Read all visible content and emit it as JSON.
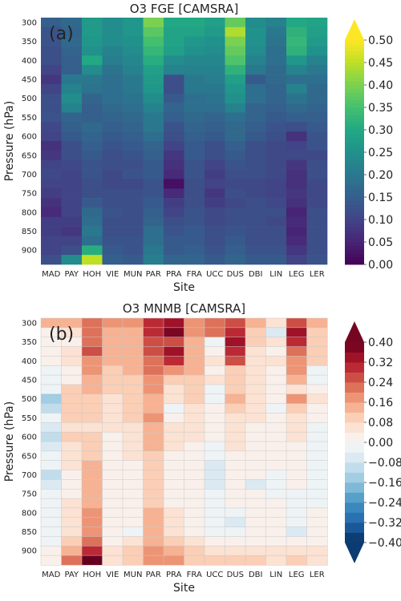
{
  "chart_data": [
    {
      "type": "heatmap",
      "panel_label": "(a)",
      "title": "O3 FGE [CAMSRA]",
      "xlabel": "Site",
      "ylabel": "Pressure (hPa)",
      "x": [
        "MAD",
        "PAY",
        "HOH",
        "VIE",
        "MUN",
        "PAR",
        "PRA",
        "FRA",
        "UCC",
        "DUS",
        "DBI",
        "LIN",
        "LEG",
        "LER"
      ],
      "y": [
        300,
        325,
        350,
        375,
        400,
        425,
        450,
        475,
        500,
        525,
        550,
        575,
        600,
        625,
        650,
        675,
        700,
        725,
        750,
        775,
        800,
        825,
        850,
        875,
        900,
        925
      ],
      "ytick_labels": [
        "300",
        "350",
        "400",
        "450",
        "500",
        "550",
        "600",
        "650",
        "700",
        "750",
        "800",
        "850",
        "900"
      ],
      "colorbar": {
        "colormap": "viridis",
        "vmin": 0.0,
        "vmax": 0.5,
        "ticks": [
          "0.00",
          "0.05",
          "0.10",
          "0.15",
          "0.20",
          "0.25",
          "0.30",
          "0.35",
          "0.40",
          "0.45",
          "0.50"
        ],
        "extend": "max"
      },
      "values": [
        [
          0.15,
          0.17,
          0.27,
          0.24,
          0.26,
          0.4,
          0.3,
          0.3,
          0.28,
          0.38,
          0.24,
          0.22,
          0.3,
          0.29
        ],
        [
          0.13,
          0.16,
          0.27,
          0.24,
          0.26,
          0.37,
          0.29,
          0.29,
          0.27,
          0.44,
          0.25,
          0.2,
          0.32,
          0.28
        ],
        [
          0.13,
          0.17,
          0.26,
          0.24,
          0.25,
          0.35,
          0.29,
          0.26,
          0.25,
          0.4,
          0.25,
          0.19,
          0.33,
          0.27
        ],
        [
          0.12,
          0.16,
          0.25,
          0.22,
          0.24,
          0.33,
          0.28,
          0.25,
          0.24,
          0.38,
          0.24,
          0.18,
          0.32,
          0.25
        ],
        [
          0.12,
          0.15,
          0.3,
          0.21,
          0.23,
          0.31,
          0.24,
          0.23,
          0.23,
          0.36,
          0.22,
          0.18,
          0.26,
          0.22
        ],
        [
          0.1,
          0.15,
          0.24,
          0.19,
          0.22,
          0.28,
          0.22,
          0.22,
          0.22,
          0.32,
          0.2,
          0.17,
          0.22,
          0.2
        ],
        [
          0.08,
          0.2,
          0.2,
          0.18,
          0.2,
          0.27,
          0.12,
          0.2,
          0.21,
          0.28,
          0.14,
          0.17,
          0.18,
          0.18
        ],
        [
          0.1,
          0.22,
          0.19,
          0.18,
          0.2,
          0.26,
          0.12,
          0.2,
          0.2,
          0.26,
          0.18,
          0.16,
          0.22,
          0.17
        ],
        [
          0.12,
          0.24,
          0.16,
          0.18,
          0.19,
          0.24,
          0.14,
          0.18,
          0.19,
          0.25,
          0.18,
          0.16,
          0.19,
          0.17
        ],
        [
          0.12,
          0.22,
          0.15,
          0.17,
          0.18,
          0.22,
          0.16,
          0.18,
          0.18,
          0.22,
          0.16,
          0.15,
          0.17,
          0.16
        ],
        [
          0.13,
          0.16,
          0.15,
          0.16,
          0.17,
          0.2,
          0.15,
          0.17,
          0.16,
          0.18,
          0.16,
          0.14,
          0.15,
          0.15
        ],
        [
          0.11,
          0.15,
          0.17,
          0.15,
          0.16,
          0.2,
          0.13,
          0.16,
          0.15,
          0.17,
          0.15,
          0.13,
          0.12,
          0.14
        ],
        [
          0.1,
          0.14,
          0.16,
          0.14,
          0.15,
          0.18,
          0.12,
          0.15,
          0.14,
          0.17,
          0.14,
          0.12,
          0.07,
          0.13
        ],
        [
          0.07,
          0.12,
          0.15,
          0.13,
          0.14,
          0.16,
          0.1,
          0.14,
          0.12,
          0.15,
          0.12,
          0.11,
          0.1,
          0.13
        ],
        [
          0.08,
          0.12,
          0.14,
          0.12,
          0.13,
          0.15,
          0.08,
          0.14,
          0.12,
          0.14,
          0.12,
          0.11,
          0.11,
          0.11
        ],
        [
          0.1,
          0.11,
          0.13,
          0.12,
          0.12,
          0.14,
          0.07,
          0.13,
          0.1,
          0.13,
          0.12,
          0.11,
          0.08,
          0.12
        ],
        [
          0.11,
          0.1,
          0.13,
          0.11,
          0.13,
          0.14,
          0.06,
          0.13,
          0.09,
          0.12,
          0.12,
          0.11,
          0.07,
          0.12
        ],
        [
          0.1,
          0.1,
          0.12,
          0.11,
          0.11,
          0.13,
          0.02,
          0.12,
          0.1,
          0.11,
          0.11,
          0.1,
          0.07,
          0.11
        ],
        [
          0.09,
          0.1,
          0.12,
          0.12,
          0.12,
          0.13,
          0.06,
          0.12,
          0.08,
          0.12,
          0.11,
          0.1,
          0.08,
          0.11
        ],
        [
          0.07,
          0.1,
          0.14,
          0.12,
          0.12,
          0.14,
          0.09,
          0.12,
          0.09,
          0.11,
          0.12,
          0.11,
          0.07,
          0.11
        ],
        [
          0.06,
          0.1,
          0.17,
          0.13,
          0.12,
          0.15,
          0.1,
          0.13,
          0.11,
          0.12,
          0.12,
          0.12,
          0.05,
          0.12
        ],
        [
          0.09,
          0.09,
          0.18,
          0.12,
          0.12,
          0.16,
          0.12,
          0.13,
          0.11,
          0.12,
          0.12,
          0.11,
          0.06,
          0.12
        ],
        [
          0.09,
          0.08,
          0.2,
          0.12,
          0.12,
          0.18,
          0.13,
          0.14,
          0.12,
          0.13,
          0.12,
          0.12,
          0.05,
          0.12
        ],
        [
          0.1,
          0.1,
          0.18,
          0.13,
          0.13,
          0.18,
          0.14,
          0.14,
          0.12,
          0.14,
          0.12,
          0.12,
          0.06,
          0.12
        ],
        [
          0.1,
          0.12,
          0.31,
          0.14,
          0.13,
          0.2,
          0.14,
          0.15,
          0.13,
          0.15,
          0.13,
          0.13,
          0.08,
          0.12
        ],
        [
          0.12,
          0.24,
          0.45,
          0.15,
          0.14,
          0.21,
          0.16,
          0.16,
          0.14,
          0.16,
          0.14,
          0.14,
          0.1,
          0.13
        ]
      ]
    },
    {
      "type": "heatmap",
      "panel_label": "(b)",
      "title": "O3 MNMB [CAMSRA]",
      "xlabel": "Site",
      "ylabel": "Pressure (hPa)",
      "x": [
        "MAD",
        "PAY",
        "HOH",
        "VIE",
        "MUN",
        "PAR",
        "PRA",
        "FRA",
        "UCC",
        "DUS",
        "DBI",
        "LIN",
        "LEG",
        "LER"
      ],
      "y": [
        300,
        325,
        350,
        375,
        400,
        425,
        450,
        475,
        500,
        525,
        550,
        575,
        600,
        625,
        650,
        675,
        700,
        725,
        750,
        775,
        800,
        825,
        850,
        875,
        900,
        925
      ],
      "ytick_labels": [
        "300",
        "350",
        "400",
        "450",
        "500",
        "550",
        "600",
        "650",
        "700",
        "750",
        "800",
        "850",
        "900"
      ],
      "colorbar": {
        "colormap": "RdBu_r",
        "vmin": -0.4,
        "vmax": 0.4,
        "ticks": [
          "−0.40",
          "−0.32",
          "−0.24",
          "−0.16",
          "−0.08",
          "0.00",
          "0.08",
          "0.16",
          "0.24",
          "0.32",
          "0.40"
        ],
        "extend": "both"
      },
      "values": [
        [
          0.12,
          0.13,
          0.22,
          0.16,
          0.16,
          0.3,
          0.34,
          0.19,
          0.22,
          0.26,
          0.14,
          0.05,
          0.26,
          0.12
        ],
        [
          0.03,
          0.05,
          0.2,
          0.14,
          0.15,
          0.28,
          0.36,
          0.16,
          0.2,
          0.28,
          0.1,
          -0.06,
          0.33,
          0.1
        ],
        [
          0.02,
          0.04,
          0.24,
          0.14,
          0.14,
          0.26,
          0.26,
          0.15,
          -0.02,
          0.34,
          0.08,
          0.06,
          0.28,
          0.1
        ],
        [
          0.02,
          0.05,
          0.25,
          0.12,
          0.14,
          0.25,
          0.32,
          0.13,
          0.04,
          0.3,
          0.07,
          0.03,
          0.24,
          0.09
        ],
        [
          0.02,
          0.06,
          0.18,
          0.12,
          0.14,
          0.24,
          0.29,
          0.12,
          0.06,
          0.27,
          0.07,
          0.05,
          0.18,
          0.08
        ],
        [
          -0.03,
          0.03,
          0.17,
          0.1,
          0.12,
          0.22,
          0.16,
          0.12,
          0.04,
          0.1,
          0.06,
          0.04,
          0.18,
          -0.04
        ],
        [
          -0.02,
          0.02,
          0.15,
          0.09,
          0.11,
          0.18,
          0.1,
          0.1,
          0.05,
          0.1,
          0.07,
          0.04,
          0.13,
          -0.02
        ],
        [
          -0.04,
          0.08,
          0.15,
          0.08,
          0.1,
          0.18,
          0.06,
          0.09,
          -0.02,
          0.08,
          0.06,
          0.04,
          0.05,
          0.04
        ],
        [
          -0.13,
          0.1,
          0.1,
          0.07,
          0.08,
          0.14,
          0.05,
          0.08,
          -0.04,
          0.14,
          0.06,
          0.03,
          0.16,
          0.06
        ],
        [
          -0.09,
          0.11,
          0.1,
          0.06,
          0.08,
          0.14,
          -0.01,
          0.06,
          0.02,
          0.08,
          0.05,
          -0.03,
          0.08,
          0.04
        ],
        [
          -0.02,
          0.08,
          0.09,
          0.05,
          0.08,
          0.16,
          0.04,
          0.06,
          0.04,
          0.07,
          0.05,
          0.03,
          0.06,
          0.04
        ],
        [
          -0.06,
          0.07,
          0.07,
          0.05,
          0.06,
          0.12,
          0.05,
          0.05,
          0.03,
          0.06,
          0.04,
          0.02,
          0.06,
          -0.02
        ],
        [
          -0.09,
          0.08,
          0.09,
          0.04,
          0.06,
          0.14,
          0.06,
          0.05,
          0.03,
          0.05,
          0.04,
          0.02,
          0.05,
          -0.04
        ],
        [
          -0.07,
          0.06,
          0.1,
          0.04,
          0.05,
          0.12,
          0.05,
          0.04,
          -0.02,
          0.05,
          0.03,
          0.01,
          0.04,
          -0.03
        ],
        [
          -0.03,
          0.05,
          0.11,
          0.04,
          0.05,
          0.11,
          0.04,
          0.04,
          -0.03,
          0.04,
          0.02,
          0.0,
          0.03,
          -0.02
        ],
        [
          -0.04,
          0.05,
          0.12,
          0.03,
          0.04,
          0.1,
          0.03,
          0.03,
          -0.05,
          0.03,
          0.02,
          0.0,
          0.02,
          -0.02
        ],
        [
          -0.08,
          0.04,
          0.12,
          0.03,
          0.04,
          0.11,
          0.03,
          0.03,
          -0.06,
          0.02,
          0.01,
          -0.01,
          0.01,
          -0.01
        ],
        [
          -0.06,
          0.04,
          0.14,
          0.02,
          0.03,
          0.1,
          0.02,
          0.02,
          -0.05,
          0.02,
          -0.05,
          -0.01,
          0.0,
          -0.01
        ],
        [
          -0.04,
          0.04,
          0.13,
          0.02,
          0.03,
          0.1,
          0.03,
          0.02,
          -0.04,
          0.02,
          0.0,
          -0.01,
          -0.04,
          -0.01
        ],
        [
          -0.03,
          0.05,
          0.14,
          0.02,
          0.03,
          0.11,
          0.04,
          0.03,
          -0.03,
          0.0,
          0.0,
          0.0,
          -0.03,
          -0.01
        ],
        [
          -0.03,
          0.06,
          0.16,
          0.02,
          0.04,
          0.12,
          0.05,
          0.03,
          -0.02,
          -0.04,
          0.01,
          0.0,
          -0.02,
          0.0
        ],
        [
          -0.02,
          0.07,
          0.17,
          0.03,
          0.04,
          0.13,
          0.06,
          0.04,
          -0.01,
          -0.06,
          0.02,
          0.01,
          -0.01,
          0.01
        ],
        [
          -0.02,
          0.07,
          0.18,
          0.04,
          -0.04,
          0.14,
          0.07,
          0.04,
          -0.01,
          -0.03,
          0.03,
          0.02,
          -0.06,
          0.02
        ],
        [
          -0.01,
          0.08,
          0.24,
          0.04,
          0.06,
          0.15,
          0.09,
          0.05,
          0.02,
          0.03,
          0.04,
          0.03,
          0.02,
          0.03
        ],
        [
          0.0,
          0.12,
          0.3,
          0.06,
          0.08,
          0.18,
          0.13,
          0.08,
          0.06,
          0.06,
          0.07,
          0.05,
          0.06,
          0.05
        ],
        [
          0.03,
          0.2,
          0.4,
          0.07,
          0.09,
          0.19,
          0.17,
          0.1,
          0.1,
          0.08,
          0.09,
          0.06,
          0.08,
          0.07
        ]
      ]
    }
  ]
}
